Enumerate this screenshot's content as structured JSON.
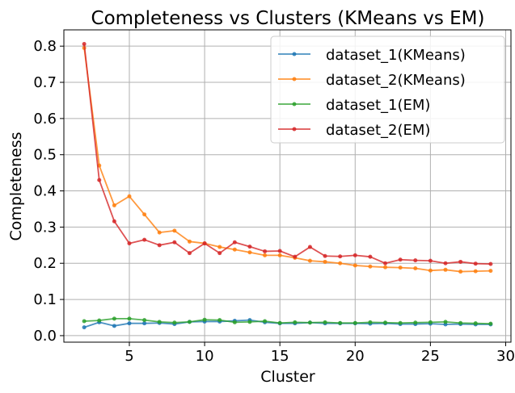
{
  "chart_data": {
    "type": "line",
    "title": "Completeness vs Clusters (KMeans vs EM)",
    "xlabel": "Cluster",
    "ylabel": "Completeness",
    "xlim": [
      0.65,
      30.35
    ],
    "ylim": [
      -0.018,
      0.845
    ],
    "xticks": [
      5,
      10,
      15,
      20,
      25,
      30
    ],
    "yticks": [
      0.0,
      0.1,
      0.2,
      0.3,
      0.4,
      0.5,
      0.6,
      0.7,
      0.8
    ],
    "xtick_labels": [
      "5",
      "10",
      "15",
      "20",
      "25",
      "30"
    ],
    "ytick_labels": [
      "0.0",
      "0.1",
      "0.2",
      "0.3",
      "0.4",
      "0.5",
      "0.6",
      "0.7",
      "0.8"
    ],
    "grid": true,
    "legend_position": "top-right",
    "x": [
      2,
      3,
      4,
      5,
      6,
      7,
      8,
      9,
      10,
      11,
      12,
      13,
      14,
      15,
      16,
      17,
      18,
      19,
      20,
      21,
      22,
      23,
      24,
      25,
      26,
      27,
      28,
      29
    ],
    "series": [
      {
        "name": "dataset_1(KMeans)",
        "color": "#1f77b4",
        "values": [
          0.023,
          0.037,
          0.027,
          0.034,
          0.034,
          0.035,
          0.032,
          0.038,
          0.039,
          0.039,
          0.041,
          0.043,
          0.037,
          0.034,
          0.034,
          0.036,
          0.034,
          0.034,
          0.034,
          0.033,
          0.034,
          0.032,
          0.032,
          0.033,
          0.031,
          0.032,
          0.031,
          0.031
        ]
      },
      {
        "name": "dataset_2(KMeans)",
        "color": "#ff7f0e",
        "values": [
          0.795,
          0.47,
          0.36,
          0.385,
          0.335,
          0.285,
          0.29,
          0.26,
          0.255,
          0.245,
          0.238,
          0.23,
          0.222,
          0.222,
          0.215,
          0.207,
          0.204,
          0.2,
          0.194,
          0.191,
          0.189,
          0.188,
          0.186,
          0.18,
          0.182,
          0.177,
          0.178,
          0.179
        ]
      },
      {
        "name": "dataset_1(EM)",
        "color": "#2ca02c",
        "values": [
          0.04,
          0.042,
          0.047,
          0.047,
          0.043,
          0.038,
          0.036,
          0.038,
          0.044,
          0.043,
          0.037,
          0.038,
          0.04,
          0.035,
          0.037,
          0.036,
          0.037,
          0.035,
          0.035,
          0.037,
          0.036,
          0.035,
          0.036,
          0.037,
          0.038,
          0.035,
          0.034,
          0.033
        ]
      },
      {
        "name": "dataset_2(EM)",
        "color": "#d62728",
        "values": [
          0.806,
          0.43,
          0.316,
          0.255,
          0.265,
          0.25,
          0.258,
          0.228,
          0.255,
          0.228,
          0.258,
          0.246,
          0.233,
          0.234,
          0.218,
          0.245,
          0.22,
          0.219,
          0.222,
          0.218,
          0.2,
          0.21,
          0.208,
          0.207,
          0.2,
          0.204,
          0.199,
          0.198
        ]
      }
    ]
  }
}
